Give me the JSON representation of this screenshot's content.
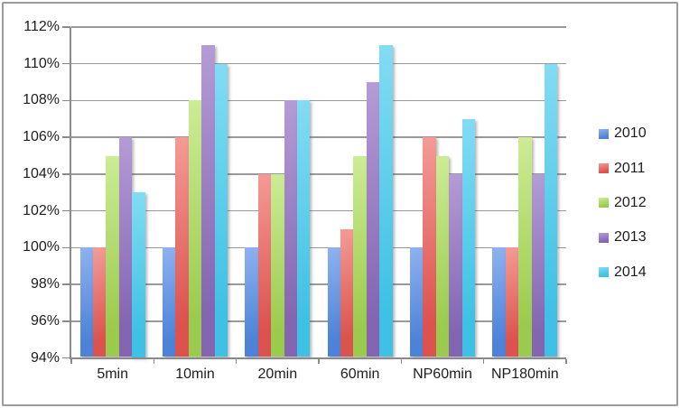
{
  "chart_data": {
    "type": "bar",
    "title": "",
    "categories": [
      "5min",
      "10min",
      "20min",
      "60min",
      "NP60min",
      "NP180min"
    ],
    "series": [
      {
        "name": "2010",
        "color": "#4C82D8",
        "color_light": "#8FB2F0",
        "values": [
          100,
          100,
          100,
          100,
          100,
          100
        ]
      },
      {
        "name": "2011",
        "color": "#DB524E",
        "color_light": "#F49B97",
        "values": [
          100,
          106,
          104,
          101,
          106,
          100
        ]
      },
      {
        "name": "2012",
        "color": "#9BCB4D",
        "color_light": "#CDEC96",
        "values": [
          105,
          108,
          104,
          105,
          105,
          106
        ]
      },
      {
        "name": "2013",
        "color": "#8465B2",
        "color_light": "#B49CD6",
        "values": [
          106,
          111,
          108,
          109,
          104,
          104
        ]
      },
      {
        "name": "2014",
        "color": "#3EC1E4",
        "color_light": "#83DCF3",
        "values": [
          103,
          110,
          108,
          111,
          107,
          110
        ]
      }
    ],
    "y_axis": {
      "min": 94,
      "max": 112,
      "step": 2,
      "tick_labels": [
        "94%",
        "96%",
        "98%",
        "100%",
        "102%",
        "104%",
        "106%",
        "108%",
        "110%",
        "112%"
      ]
    },
    "x_axis": {
      "tick_labels": [
        "5min",
        "10min",
        "20min",
        "60min",
        "NP60min",
        "NP180min"
      ]
    },
    "legend": {
      "position": "right",
      "entries": [
        "2010",
        "2011",
        "2012",
        "2013",
        "2014"
      ]
    },
    "grid": true,
    "colors": {
      "gridline": "#9A9A9A",
      "axis": "#8A8A8A",
      "frame_border": "#9B9B9B",
      "text": "#1D1D1D",
      "background": "#FFFFFF"
    }
  }
}
